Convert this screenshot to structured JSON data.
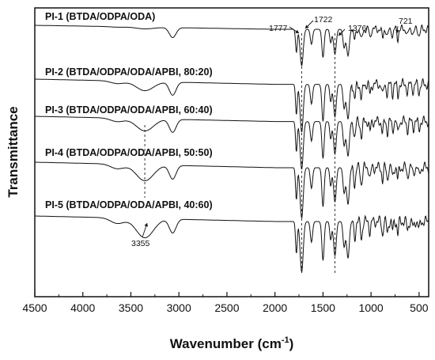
{
  "chart_data": {
    "type": "line",
    "title": "",
    "xlabel": "Wavenumber (cm",
    "xlabel_sup": "-1",
    "xlabel_end": ")",
    "ylabel": "Transmittance",
    "xlim": [
      4500,
      400
    ],
    "x_reversed": true,
    "x_ticks": [
      4500,
      4000,
      3500,
      3000,
      2500,
      2000,
      1500,
      1000,
      500
    ],
    "x_tick_labels": [
      "4500",
      "4000",
      "3500",
      "3000",
      "2500",
      "2000",
      "1500",
      "1000",
      "500"
    ],
    "y_ticks_shown": false,
    "grid": false,
    "series": [
      {
        "name": "PI-1 (BTDA/ODPA/ODA)",
        "offset": 0
      },
      {
        "name": "PI-2 (BTDA/ODPA/ODA/APBI, 80:20)",
        "offset": 1
      },
      {
        "name": "PI-3 (BTDA/ODPA/ODA/APBI, 60:40)",
        "offset": 2
      },
      {
        "name": "PI-4 (BTDA/ODPA/ODA/APBI, 50:50)",
        "offset": 3
      },
      {
        "name": "PI-5 (BTDA/ODPA/ODA/APBI, 40:60)",
        "offset": 4
      }
    ],
    "annotations": [
      {
        "label": "1777",
        "x": 1777
      },
      {
        "label": "1722",
        "x": 1722
      },
      {
        "label": "1376",
        "x": 1376
      },
      {
        "label": "721",
        "x": 721
      },
      {
        "label": "3355",
        "x": 3355
      }
    ],
    "dashed_guides": [
      1722,
      1376,
      3355
    ],
    "spectrum_features": [
      {
        "x": 3640,
        "depth": 0.1,
        "width": 70
      },
      {
        "x": 3355,
        "depth": 0.35,
        "width": 90
      },
      {
        "x": 3065,
        "depth": 0.3,
        "width": 35
      },
      {
        "x": 1777,
        "depth": 0.7,
        "width": 9
      },
      {
        "x": 1722,
        "depth": 1.1,
        "width": 16
      },
      {
        "x": 1620,
        "depth": 0.45,
        "width": 12
      },
      {
        "x": 1500,
        "depth": 0.85,
        "width": 12
      },
      {
        "x": 1420,
        "depth": 0.4,
        "width": 10
      },
      {
        "x": 1376,
        "depth": 0.75,
        "width": 14
      },
      {
        "x": 1280,
        "depth": 0.55,
        "width": 12
      },
      {
        "x": 1240,
        "depth": 0.8,
        "width": 14
      },
      {
        "x": 1170,
        "depth": 0.35,
        "width": 10
      },
      {
        "x": 1100,
        "depth": 0.35,
        "width": 10
      },
      {
        "x": 1010,
        "depth": 0.25,
        "width": 8
      },
      {
        "x": 880,
        "depth": 0.28,
        "width": 8
      },
      {
        "x": 830,
        "depth": 0.25,
        "width": 8
      },
      {
        "x": 775,
        "depth": 0.22,
        "width": 7
      },
      {
        "x": 721,
        "depth": 0.3,
        "width": 7
      },
      {
        "x": 620,
        "depth": 0.2,
        "width": 8
      },
      {
        "x": 560,
        "depth": 0.15,
        "width": 8
      },
      {
        "x": 500,
        "depth": 0.18,
        "width": 8
      }
    ]
  }
}
